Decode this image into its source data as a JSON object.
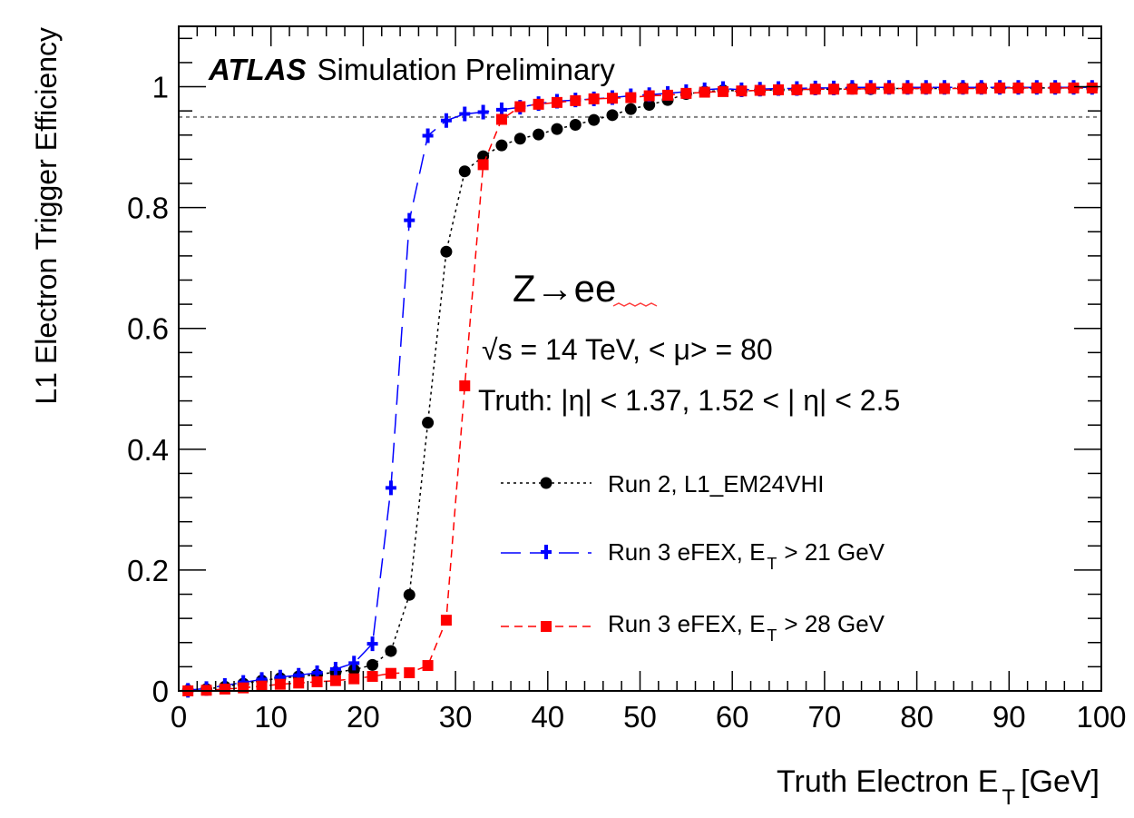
{
  "chart_data": {
    "type": "line",
    "ylabel": "L1 Electron Trigger Efficiency",
    "xlabel": "Truth Electron E",
    "xlabel_sub": "T",
    "xlabel_unit": "[GeV]",
    "xlim": [
      0,
      100
    ],
    "ylim": [
      0,
      1.1
    ],
    "reference_line_y": 0.95,
    "xticks": [
      0,
      10,
      20,
      30,
      40,
      50,
      60,
      70,
      80,
      90,
      100
    ],
    "yticks": [
      0,
      0.2,
      0.4,
      0.6,
      0.8,
      1
    ],
    "ytick_labels": [
      "0",
      "0.2",
      "0.4",
      "0.6",
      "0.8",
      "1"
    ],
    "annotations": {
      "atlas": "ATLAS",
      "atlas_rest": "Simulation Preliminary",
      "process": "Z→ee",
      "energy": "√s = 14 TeV, < μ> = 80",
      "truth": "Truth: |η| < 1.37, 1.52 < | η| < 2.5"
    },
    "series": [
      {
        "name": "Run 2, L1_EM24VHI",
        "color": "#000000",
        "marker": "circle",
        "dash": "3,4",
        "x": [
          1,
          3,
          5,
          7,
          9,
          11,
          13,
          15,
          17,
          19,
          21,
          23,
          25,
          27,
          29,
          31,
          33,
          35,
          37,
          39,
          41,
          43,
          45,
          47,
          49,
          51,
          53,
          55,
          57,
          59,
          61,
          63,
          65,
          67,
          69,
          71,
          73,
          75,
          77,
          79,
          81,
          83,
          85,
          87,
          89,
          91,
          93,
          95,
          97,
          99
        ],
        "y": [
          0.001,
          0.003,
          0.007,
          0.012,
          0.017,
          0.021,
          0.024,
          0.027,
          0.031,
          0.035,
          0.043,
          0.066,
          0.159,
          0.444,
          0.727,
          0.86,
          0.885,
          0.903,
          0.914,
          0.921,
          0.93,
          0.937,
          0.945,
          0.953,
          0.963,
          0.97,
          0.978,
          0.988,
          0.992,
          0.994,
          0.993,
          0.994,
          0.995,
          0.995,
          0.996,
          0.996,
          0.997,
          0.996,
          0.997,
          0.997,
          0.997,
          0.997,
          0.998,
          0.998,
          0.998,
          0.998,
          0.998,
          0.998,
          0.998,
          0.998
        ]
      },
      {
        "name": "Run 3 eFEX, E",
        "name_sub": "T",
        "name_tail": "> 21 GeV",
        "color": "#0000ff",
        "marker": "cross",
        "dash": "22,10",
        "x": [
          1,
          3,
          5,
          7,
          9,
          11,
          13,
          15,
          17,
          19,
          21,
          23,
          25,
          27,
          29,
          31,
          33,
          35,
          37,
          39,
          41,
          43,
          45,
          47,
          49,
          51,
          53,
          55,
          57,
          59,
          61,
          63,
          65,
          67,
          69,
          71,
          73,
          75,
          77,
          79,
          81,
          83,
          85,
          87,
          89,
          91,
          93,
          95,
          97,
          99
        ],
        "y": [
          0.001,
          0.004,
          0.009,
          0.014,
          0.019,
          0.023,
          0.026,
          0.03,
          0.036,
          0.046,
          0.078,
          0.336,
          0.779,
          0.919,
          0.944,
          0.955,
          0.958,
          0.962,
          0.966,
          0.972,
          0.976,
          0.978,
          0.98,
          0.982,
          0.985,
          0.987,
          0.989,
          0.992,
          0.995,
          0.997,
          0.995,
          0.996,
          0.997,
          0.997,
          0.998,
          0.998,
          0.999,
          0.999,
          0.999,
          0.999,
          0.999,
          0.999,
          0.999,
          0.999,
          0.999,
          0.999,
          0.999,
          0.999,
          0.999,
          0.999
        ]
      },
      {
        "name": "Run 3 eFEX, E",
        "name_sub": "T",
        "name_tail": "> 28 GeV",
        "color": "#ff0000",
        "marker": "square",
        "dash": "9,6",
        "x": [
          1,
          3,
          5,
          7,
          9,
          11,
          13,
          15,
          17,
          19,
          21,
          23,
          25,
          27,
          29,
          31,
          33,
          35,
          37,
          39,
          41,
          43,
          45,
          47,
          49,
          51,
          53,
          55,
          57,
          59,
          61,
          63,
          65,
          67,
          69,
          71,
          73,
          75,
          77,
          79,
          81,
          83,
          85,
          87,
          89,
          91,
          93,
          95,
          97,
          99
        ],
        "y": [
          0.0,
          0.001,
          0.003,
          0.005,
          0.008,
          0.011,
          0.013,
          0.015,
          0.017,
          0.02,
          0.024,
          0.029,
          0.03,
          0.042,
          0.117,
          0.505,
          0.871,
          0.946,
          0.967,
          0.971,
          0.974,
          0.977,
          0.98,
          0.981,
          0.982,
          0.985,
          0.986,
          0.989,
          0.991,
          0.992,
          0.993,
          0.994,
          0.995,
          0.995,
          0.996,
          0.996,
          0.996,
          0.997,
          0.997,
          0.997,
          0.997,
          0.997,
          0.997,
          0.997,
          0.998,
          0.998,
          0.998,
          0.998,
          0.998,
          0.998
        ]
      }
    ]
  }
}
